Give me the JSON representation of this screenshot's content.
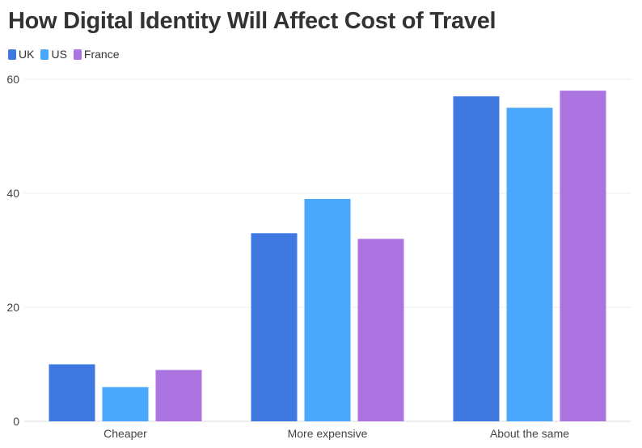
{
  "chart_data": {
    "type": "bar",
    "title": "How Digital Identity Will Affect Cost of Travel",
    "xlabel": "",
    "ylabel": "",
    "categories": [
      "Cheaper",
      "More expensive",
      "About the same"
    ],
    "series": [
      {
        "name": "UK",
        "color": "#3f78e0",
        "values": [
          10,
          33,
          57
        ]
      },
      {
        "name": "US",
        "color": "#4aa8fc",
        "values": [
          6,
          39,
          55
        ]
      },
      {
        "name": "France",
        "color": "#ab74e0",
        "values": [
          9,
          32,
          58
        ]
      }
    ],
    "ylim": [
      0,
      60
    ],
    "yticks": [
      {
        "value": 0,
        "label": "0"
      },
      {
        "value": 20,
        "label": "20"
      },
      {
        "value": 40,
        "label": "40"
      },
      {
        "value": 60,
        "label": "60"
      }
    ],
    "grid": true,
    "legend_position": "top-left"
  }
}
